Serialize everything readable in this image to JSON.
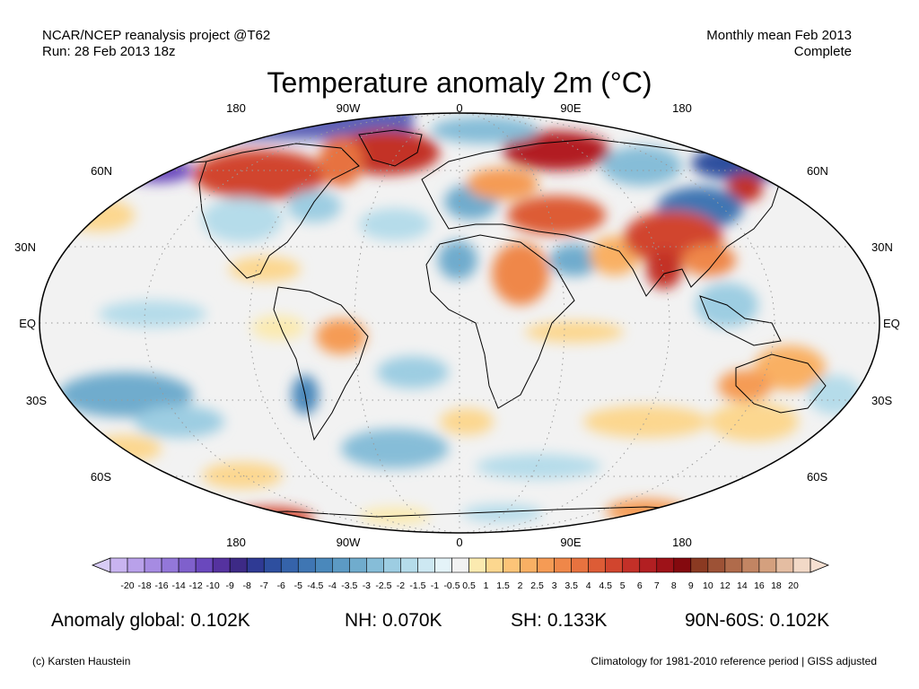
{
  "header": {
    "left_line1": "NCAR/NCEP reanalysis project @T62",
    "left_line2": "Run: 28 Feb 2013 18z",
    "right_line1": "Monthly mean Feb 2013",
    "right_line2": "Complete",
    "title": "Temperature anomaly 2m (°C)"
  },
  "map": {
    "lon_labels": [
      "180",
      "90W",
      "0",
      "90E",
      "180"
    ],
    "lat_labels": [
      "60N",
      "30N",
      "EQ",
      "30S",
      "60S"
    ],
    "ocean_color": "#f2f2f2",
    "outline_color": "#000000"
  },
  "colorbar": {
    "tick_labels": [
      "-20",
      "-18",
      "-16",
      "-14",
      "-12",
      "-10",
      "-9",
      "-8",
      "-7",
      "-6",
      "-5",
      "-4.5",
      "-4",
      "-3.5",
      "-3",
      "-2.5",
      "-2",
      "-1.5",
      "-1",
      "-0.5",
      "0.5",
      "1",
      "1.5",
      "2",
      "2.5",
      "3",
      "3.5",
      "4",
      "4.5",
      "5",
      "6",
      "7",
      "8",
      "9",
      "10",
      "12",
      "14",
      "16",
      "18",
      "20"
    ],
    "colors": [
      "#c9b4f0",
      "#b9a1ea",
      "#a68be2",
      "#9377d9",
      "#7f60cc",
      "#6a48bd",
      "#55329f",
      "#3d2a86",
      "#2f3a94",
      "#2e4f9f",
      "#3563aa",
      "#3f76b3",
      "#4a88bb",
      "#5c9ac4",
      "#70accd",
      "#86bdd8",
      "#9dcde2",
      "#b5dcea",
      "#cde8f2",
      "#e4f3f8",
      "#f2f2f2",
      "#fbeab0",
      "#fcd78f",
      "#fcc478",
      "#f9b064",
      "#f59b55",
      "#ef8749",
      "#e7723f",
      "#dd5c36",
      "#d1452e",
      "#c33028",
      "#b21f22",
      "#9e1218",
      "#84090e",
      "#8b3a22",
      "#9d5236",
      "#b06b4b",
      "#c28563",
      "#d4a07e",
      "#e4bda2",
      "#f2d9c7"
    ],
    "low_cap_color": "#d8ccf6",
    "high_cap_color": "#f6e0d2"
  },
  "stats": {
    "global": "Anomaly global: 0.102K",
    "nh": "NH: 0.070K",
    "sh": "SH: 0.133K",
    "polar": "90N-60S: 0.102K"
  },
  "footer": {
    "credit": "(c) Karsten Haustein",
    "climatology": "Climatology for 1981-2010 reference period | GISS adjusted"
  }
}
